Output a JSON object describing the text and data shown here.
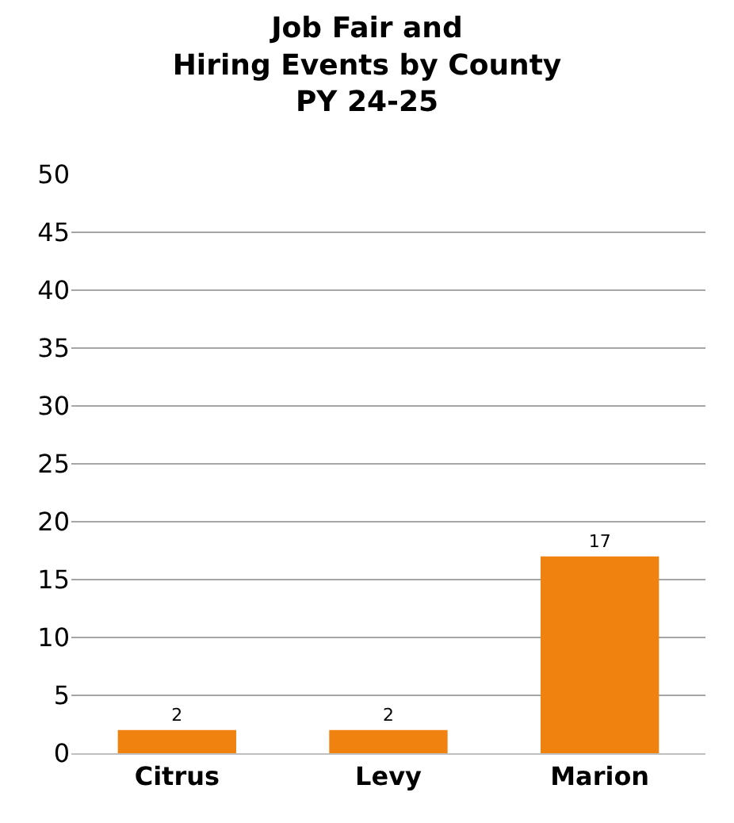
{
  "chart_data": {
    "type": "bar",
    "title": "Job Fair and\nHiring Events by County\nPY 24-25",
    "categories": [
      "Citrus",
      "Levy",
      "Marion"
    ],
    "values": [
      2,
      2,
      17
    ],
    "color": "#f0820f",
    "ylim": [
      0,
      50
    ],
    "yticks": [
      0,
      5,
      10,
      15,
      20,
      25,
      30,
      35,
      40,
      45,
      50
    ],
    "grid": "y",
    "data_labels": true,
    "legend": false
  }
}
